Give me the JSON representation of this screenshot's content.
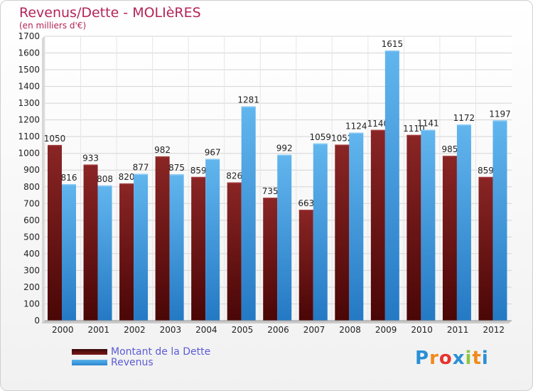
{
  "chart_data": {
    "type": "bar",
    "title": "Revenus/Dette - MOLIèRES",
    "subtitle": "(en milliers d'€)",
    "categories": [
      "2000",
      "2001",
      "2002",
      "2003",
      "2004",
      "2005",
      "2006",
      "2007",
      "2008",
      "2009",
      "2010",
      "2011",
      "2012"
    ],
    "series": [
      {
        "name": "Montant de la Dette",
        "color": "#7a1a1a",
        "values": [
          1050,
          933,
          820,
          982,
          859,
          826,
          735,
          663,
          1052,
          1140,
          1110,
          985,
          859
        ]
      },
      {
        "name": "Revenus",
        "color": "#3a9ee4",
        "values": [
          816,
          808,
          877,
          875,
          967,
          1281,
          992,
          1059,
          1124,
          1615,
          1141,
          1172,
          1197
        ]
      }
    ],
    "ylim": [
      0,
      1700
    ],
    "ytick_step": 100,
    "grid": true,
    "legend_position": "bottom-left"
  },
  "logo": {
    "letters": [
      "P",
      "r",
      "o",
      "x",
      "i",
      "t",
      "i"
    ],
    "colors": [
      "#2a8fd6",
      "#f08a1c",
      "#e5342f",
      "#2a8fd6",
      "#8cc63f",
      "#f08a1c",
      "#2a8fd6"
    ]
  }
}
